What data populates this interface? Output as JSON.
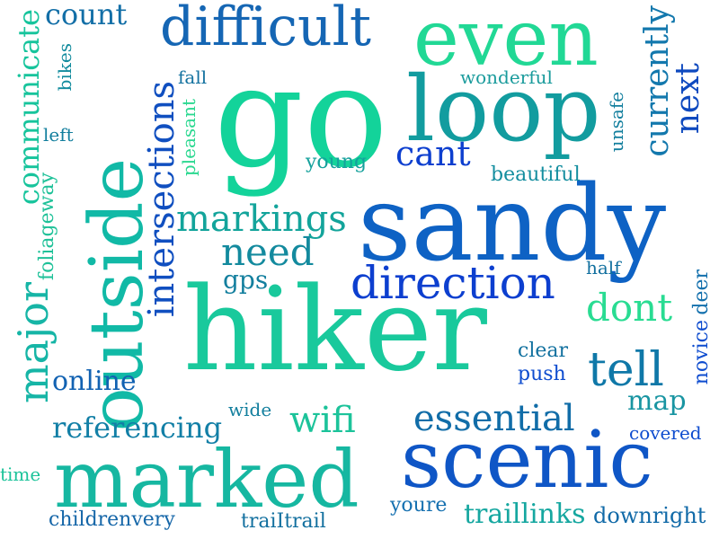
{
  "words": [
    {
      "text": "hiker",
      "color": "#19c99c"
    },
    {
      "text": "sandy",
      "color": "#0e62c4"
    },
    {
      "text": "go",
      "color": "#13d39a"
    },
    {
      "text": "outside",
      "color": "#11b9a6"
    },
    {
      "text": "loop",
      "color": "#129c9f"
    },
    {
      "text": "even",
      "color": "#21d895"
    },
    {
      "text": "marked",
      "color": "#16b7a1"
    },
    {
      "text": "scenic",
      "color": "#0f56c6"
    },
    {
      "text": "difficult",
      "color": "#1566b4"
    },
    {
      "text": "intersections",
      "color": "#104fc0"
    },
    {
      "text": "direction",
      "color": "#0d3fcf"
    },
    {
      "text": "markings",
      "color": "#13a49b"
    },
    {
      "text": "major",
      "color": "#16b5a6"
    },
    {
      "text": "communicate",
      "color": "#17c49c"
    },
    {
      "text": "need",
      "color": "#138a9e"
    },
    {
      "text": "tell",
      "color": "#0f78a8"
    },
    {
      "text": "dont",
      "color": "#29dc92"
    },
    {
      "text": "essential",
      "color": "#116da8"
    },
    {
      "text": "currently",
      "color": "#1378ad"
    },
    {
      "text": "next",
      "color": "#0e49bf"
    },
    {
      "text": "count",
      "color": "#136fa7"
    },
    {
      "text": "cant",
      "color": "#0d3fcf"
    },
    {
      "text": "referencing",
      "color": "#127fa6"
    },
    {
      "text": "wifi",
      "color": "#1cc39a"
    },
    {
      "text": "online",
      "color": "#1262b2"
    },
    {
      "text": "map",
      "color": "#1995a2"
    },
    {
      "text": "gps",
      "color": "#137f9e"
    },
    {
      "text": "traillinks",
      "color": "#16a7a0"
    },
    {
      "text": "downright",
      "color": "#116aa8"
    },
    {
      "text": "youre",
      "color": "#1570b0"
    },
    {
      "text": "childrenvery",
      "color": "#1566a8"
    },
    {
      "text": "traiItrail",
      "color": "#13709f"
    },
    {
      "text": "wonderful",
      "color": "#1a9b9c"
    },
    {
      "text": "young",
      "color": "#15a19c"
    },
    {
      "text": "beautiful",
      "color": "#148e9f"
    },
    {
      "text": "fall",
      "color": "#12719f"
    },
    {
      "text": "left",
      "color": "#137f9e"
    },
    {
      "text": "bikes",
      "color": "#138c9e"
    },
    {
      "text": "pleasant",
      "color": "#2ad890"
    },
    {
      "text": "foliageway",
      "color": "#1ec198"
    },
    {
      "text": "unsafe",
      "color": "#137f9e"
    },
    {
      "text": "half",
      "color": "#12709f"
    },
    {
      "text": "novice",
      "color": "#0e4ccf"
    },
    {
      "text": "deer",
      "color": "#1370ad"
    },
    {
      "text": "clear",
      "color": "#12719f"
    },
    {
      "text": "push",
      "color": "#0e4ccf"
    },
    {
      "text": "wide",
      "color": "#137f9e"
    },
    {
      "text": "covered",
      "color": "#0e4ccf"
    },
    {
      "text": "time",
      "color": "#1cc39a"
    }
  ]
}
